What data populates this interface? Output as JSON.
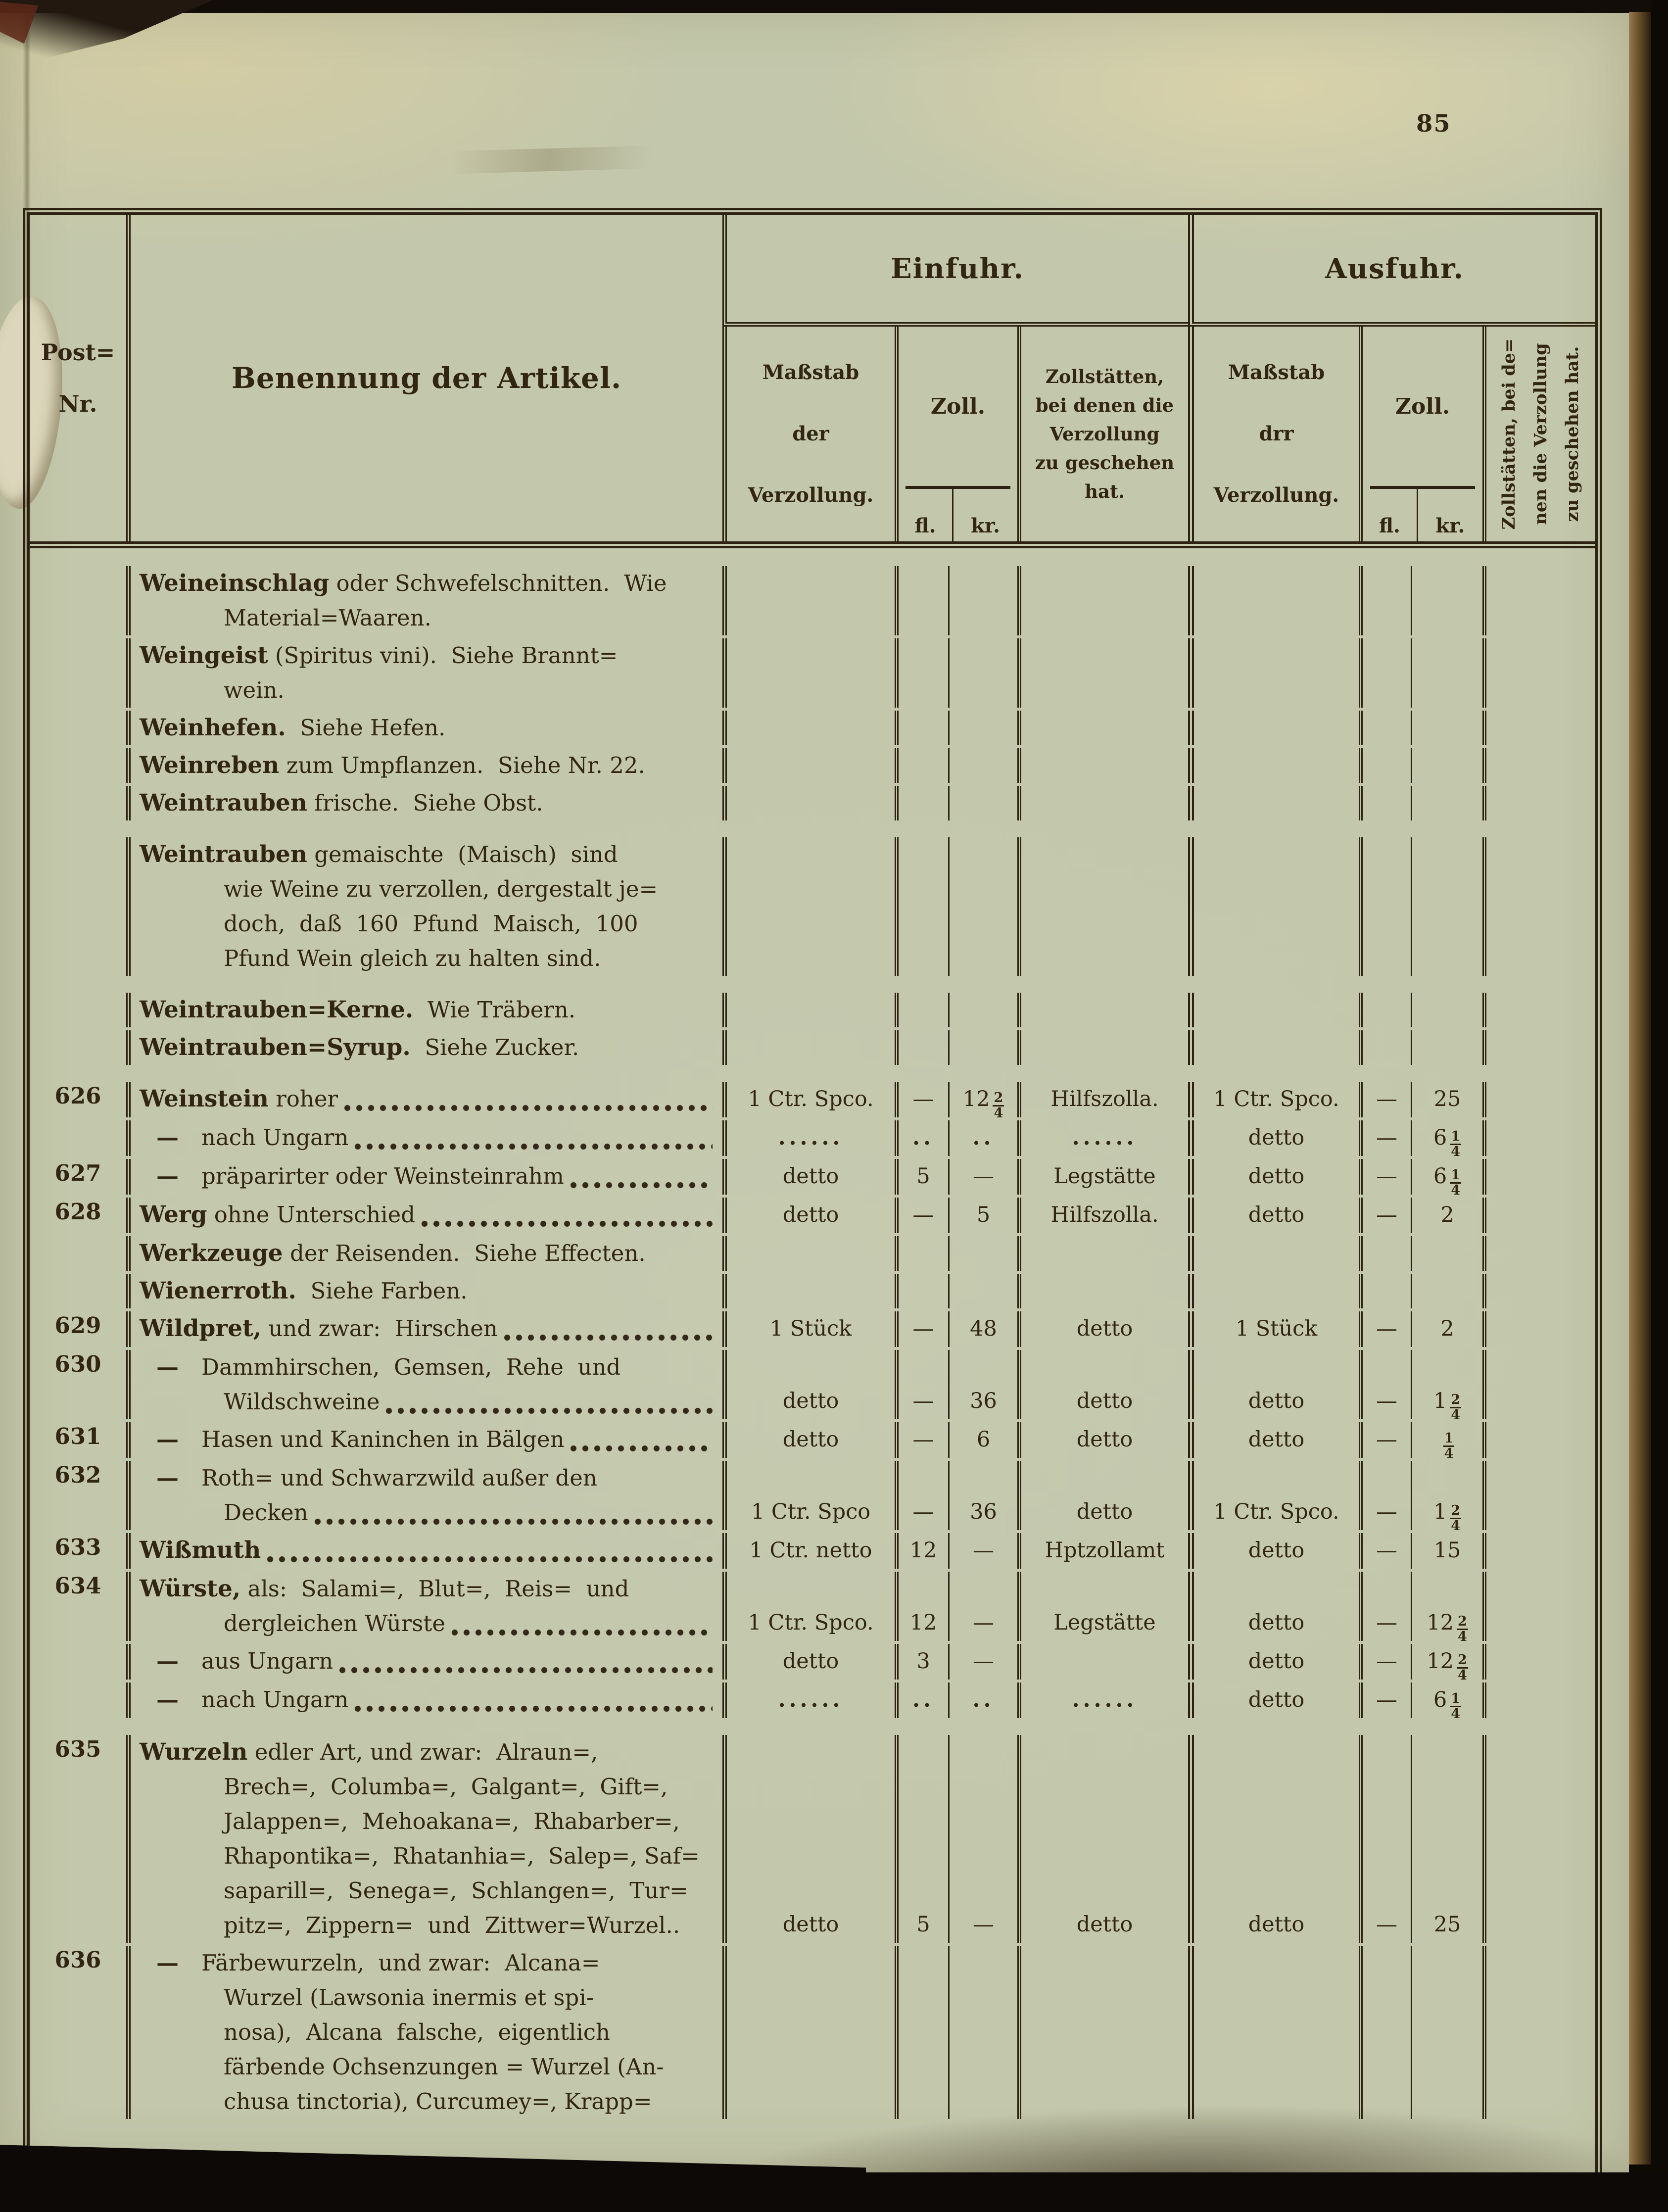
{
  "page": {
    "number": "85"
  },
  "colors": {
    "paper": "#c8ccb0",
    "ink": "#322612",
    "rule": "#2d2211"
  },
  "header": {
    "post_nr": [
      "Post=",
      "Nr."
    ],
    "artikel": "Benennung der Artikel.",
    "einfuhr": "Einfuhr.",
    "ausfuhr": "Ausfuhr.",
    "einfuhr_mass": [
      "Maßstab",
      "der",
      "Verzollung."
    ],
    "zoll": "Zoll.",
    "fl": "fl.",
    "kr": "kr.",
    "einfuhr_zollstaetten": [
      "Zollstätten,",
      "bei denen die",
      "Verzollung",
      "zu geschehen",
      "hat."
    ],
    "ausfuhr_mass": [
      "Maßstab",
      "drr",
      "Verzollung."
    ],
    "ausfuhr_zollstaetten": [
      "Zollstätten, bei de=",
      "nen die Verzollung",
      "zu geschehen hat."
    ]
  },
  "rows": [
    {
      "nr": "",
      "lines": [
        {
          "lead": "Weineinschlag",
          "text": " oder Schwefelschnitten.  Wie"
        },
        {
          "text": "Material=Waaren.",
          "ind": 1
        }
      ]
    },
    {
      "nr": "",
      "lines": [
        {
          "lead": "Weingeist",
          "text": " (Spiritus vini).  Siehe Brannt="
        },
        {
          "text": "wein.",
          "ind": 1
        }
      ]
    },
    {
      "nr": "",
      "lines": [
        {
          "lead": "Weinhefen.",
          "text": "  Siehe Hefen."
        }
      ]
    },
    {
      "nr": "",
      "lines": [
        {
          "lead": "Weinreben",
          "text": " zum Umpflanzen.  Siehe Nr. 22."
        }
      ]
    },
    {
      "nr": "",
      "lines": [
        {
          "lead": "Weintrauben",
          "text": " frische.  Siehe Obst."
        }
      ]
    },
    {
      "g": 1,
      "nr": "",
      "lines": [
        {
          "lead": "Weintrauben",
          "text": " gemaischte  (Maisch)  sind"
        },
        {
          "text": "wie Weine zu verzollen, dergestalt je=",
          "ind": 1
        },
        {
          "text": "doch,  daß  160  Pfund  Maisch,  100",
          "ind": 1
        },
        {
          "text": "Pfund Wein gleich zu halten sind.",
          "ind": 1
        }
      ]
    },
    {
      "g": 1,
      "nr": "",
      "lines": [
        {
          "lead": "Weintrauben=Kerne.",
          "text": "  Wie Träbern."
        }
      ]
    },
    {
      "nr": "",
      "lines": [
        {
          "lead": "Weintrauben=Syrup.",
          "text": "  Siehe Zucker."
        }
      ]
    },
    {
      "g": 1,
      "nr": "626",
      "lines": [
        {
          "lead": "Weinstein",
          "text": " roher",
          "dots": true
        }
      ],
      "e": {
        "m": "1 Ctr. Spco.",
        "fl": "—",
        "kr": "12 2/4",
        "z": "Hilfszolla."
      },
      "a": {
        "m": "1 Ctr. Spco.",
        "fl": "—",
        "kr": "25"
      }
    },
    {
      "nr": "",
      "lines": [
        {
          "dash": true,
          "text": "nach Ungarn",
          "dots": true
        }
      ],
      "e": {
        "m": "......",
        "fl": "..",
        "kr": "..",
        "z": "......"
      },
      "a": {
        "m": "detto",
        "fl": "—",
        "kr": "6 1/4"
      }
    },
    {
      "nr": "627",
      "lines": [
        {
          "dash": true,
          "text": "präparirter oder Weinsteinrahm",
          "dots": true
        }
      ],
      "e": {
        "m": "detto",
        "fl": "5",
        "kr": "—",
        "z": "Legstätte"
      },
      "a": {
        "m": "detto",
        "fl": "—",
        "kr": "6 1/4"
      }
    },
    {
      "nr": "628",
      "lines": [
        {
          "lead": "Werg",
          "text": " ohne Unterschied",
          "dots": true
        }
      ],
      "e": {
        "m": "detto",
        "fl": "—",
        "kr": "5",
        "z": "Hilfszolla."
      },
      "a": {
        "m": "detto",
        "fl": "—",
        "kr": "2"
      }
    },
    {
      "nr": "",
      "lines": [
        {
          "lead": "Werkzeuge",
          "text": " der Reisenden.  Siehe Effecten."
        }
      ]
    },
    {
      "nr": "",
      "lines": [
        {
          "lead": "Wienerroth.",
          "text": "  Siehe Farben."
        }
      ]
    },
    {
      "nr": "629",
      "lines": [
        {
          "lead": "Wildpret,",
          "text": " und zwar:  Hirschen",
          "dots": true
        }
      ],
      "e": {
        "m": "1 Stück",
        "fl": "—",
        "kr": "48",
        "z": "detto"
      },
      "a": {
        "m": "1 Stück",
        "fl": "—",
        "kr": "2"
      }
    },
    {
      "nr": "630",
      "lines": [
        {
          "dash": true,
          "text": "Dammhirschen,  Gemsen,  Rehe  und"
        },
        {
          "text": "Wildschweine",
          "ind": 1,
          "dots": true
        }
      ],
      "e": {
        "m": "detto",
        "fl": "—",
        "kr": "36",
        "z": "detto"
      },
      "a": {
        "m": "detto",
        "fl": "—",
        "kr": "1 2/4"
      }
    },
    {
      "nr": "631",
      "lines": [
        {
          "dash": true,
          "text": "Hasen und Kaninchen in Bälgen",
          "dots": true
        }
      ],
      "e": {
        "m": "detto",
        "fl": "—",
        "kr": "6",
        "z": "detto"
      },
      "a": {
        "m": "detto",
        "fl": "—",
        "kr": "1/4"
      }
    },
    {
      "nr": "632",
      "lines": [
        {
          "dash": true,
          "text": "Roth= und Schwarzwild außer den"
        },
        {
          "text": "Decken",
          "ind": 1,
          "dots": true
        }
      ],
      "e": {
        "m": "1 Ctr. Spco",
        "fl": "—",
        "kr": "36",
        "z": "detto"
      },
      "a": {
        "m": "1 Ctr. Spco.",
        "fl": "—",
        "kr": "1 2/4"
      }
    },
    {
      "nr": "633",
      "lines": [
        {
          "lead": "Wißmuth",
          "text": "",
          "dots": true
        }
      ],
      "e": {
        "m": "1 Ctr. netto",
        "fl": "12",
        "kr": "—",
        "z": "Hptzollamt"
      },
      "a": {
        "m": "detto",
        "fl": "—",
        "kr": "15"
      }
    },
    {
      "nr": "634",
      "lines": [
        {
          "lead": "Würste,",
          "text": " als:  Salami=,  Blut=,  Reis=  und"
        },
        {
          "text": "dergleichen Würste",
          "ind": 1,
          "dots": true
        }
      ],
      "e": {
        "m": "1 Ctr. Spco.",
        "fl": "12",
        "kr": "—",
        "z": "Legstätte"
      },
      "a": {
        "m": "detto",
        "fl": "—",
        "kr": "12 2/4"
      }
    },
    {
      "nr": "",
      "lines": [
        {
          "dash": true,
          "text": "aus Ungarn",
          "dots": true
        }
      ],
      "e": {
        "m": "detto",
        "fl": "3",
        "kr": "—",
        "z": ""
      },
      "a": {
        "m": "detto",
        "fl": "—",
        "kr": "12 2/4"
      }
    },
    {
      "nr": "",
      "lines": [
        {
          "dash": true,
          "text": "nach Ungarn",
          "dots": true
        }
      ],
      "e": {
        "m": "......",
        "fl": "..",
        "kr": "..",
        "z": "......"
      },
      "a": {
        "m": "detto",
        "fl": "—",
        "kr": "6 1/4"
      }
    },
    {
      "g": 1,
      "nr": "635",
      "lines": [
        {
          "lead": "Wurzeln",
          "text": " edler Art, und zwar:  Alraun=,"
        },
        {
          "text": "Brech=,  Columba=,  Galgant=,  Gift=,",
          "ind": 1
        },
        {
          "text": "Jalappen=,  Mehoakana=,  Rhabarber=,",
          "ind": 1
        },
        {
          "text": "Rhapontika=,  Rhatanhia=,  Salep=, Saf=",
          "ind": 1
        },
        {
          "text": "saparill=,  Senega=,  Schlangen=,  Tur=",
          "ind": 1
        },
        {
          "text": "pitz=,  Zippern=  und  Zittwer=Wurzel..",
          "ind": 1
        }
      ],
      "e": {
        "m": "detto",
        "fl": "5",
        "kr": "—",
        "z": "detto"
      },
      "a": {
        "m": "detto",
        "fl": "—",
        "kr": "25"
      }
    },
    {
      "nr": "636",
      "lines": [
        {
          "dash": true,
          "text": "Färbewurzeln,  und zwar:  Alcana="
        },
        {
          "text": "Wurzel (Lawsonia inermis et spi-",
          "ind": 1
        },
        {
          "text": "nosa),  Alcana  falsche,  eigentlich",
          "ind": 1
        },
        {
          "text": "färbende Ochsenzungen = Wurzel (An-",
          "ind": 1
        },
        {
          "text": "chusa tinctoria), Curcumey=, Krapp=",
          "ind": 1
        }
      ]
    }
  ]
}
